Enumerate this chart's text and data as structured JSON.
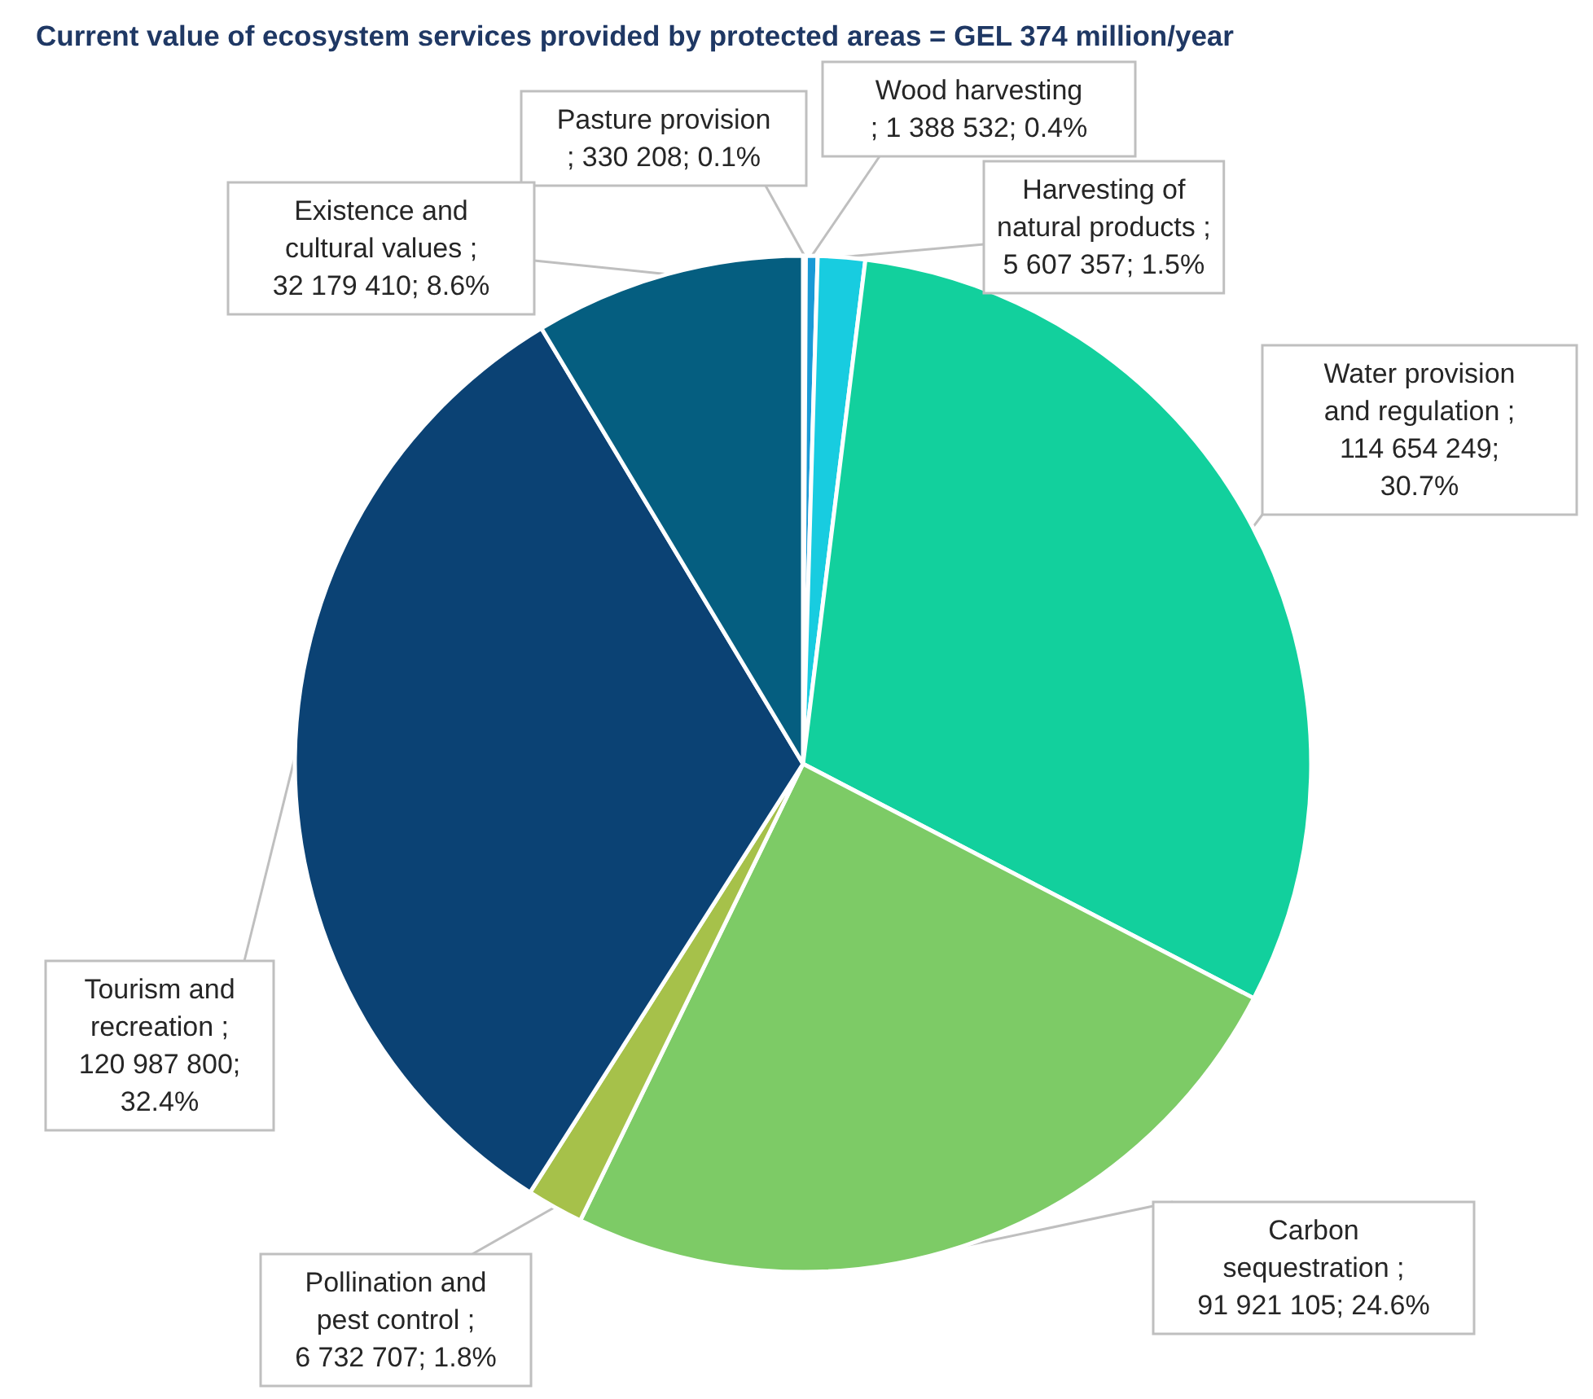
{
  "chart_data": {
    "type": "pie",
    "title": "Current value of ecosystem services provided by protected areas = GEL 374 million/year",
    "categories": [
      "Pasture provision",
      "Wood harvesting",
      "Harvesting of natural products",
      "Water provision and regulation",
      "Carbon sequestration",
      "Pollination and pest control",
      "Tourism and recreation",
      "Existence and cultural values"
    ],
    "values": [
      330208,
      1388532,
      5607357,
      114654249,
      91921105,
      6732707,
      120987800,
      32179410
    ],
    "value_labels": [
      "; 330 208; 0.1%",
      "; 1 388 532; 0.4%",
      "; 5 607 357; 1.5%",
      "; 114 654 249; 30.7%",
      "; 91 921 105; 24.6%",
      "; 6 732 707; 1.8%",
      "; 120 987 800; 32.4%",
      "; 32 179 410; 8.6%"
    ],
    "colors": [
      "#1b75bb",
      "#1a9ad6",
      "#18cce0",
      "#12d09d",
      "#7dcb66",
      "#a6c14a",
      "#0b4274",
      "#055e80"
    ],
    "legend": false
  }
}
